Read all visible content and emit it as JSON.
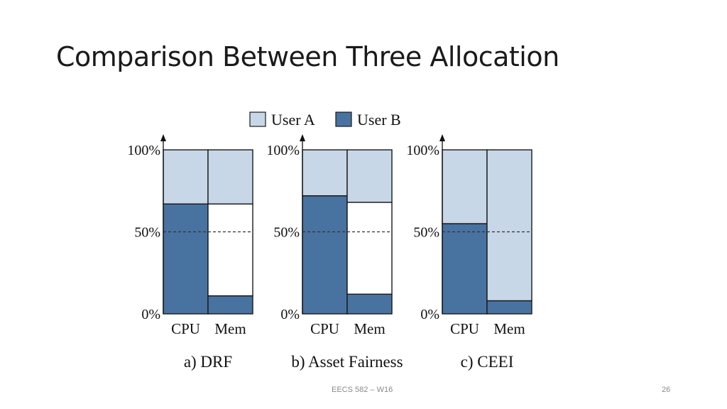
{
  "slide": {
    "title": "Comparison Between Three Allocation",
    "footer_course": "EECS 582 – W16",
    "page_number": "26"
  },
  "colors": {
    "user_a": "#c7d7e7",
    "user_b": "#4872a0",
    "unallocated": "#ffffff",
    "outline": "#1a1a1a"
  },
  "chart_data": {
    "type": "bar",
    "stacked": true,
    "legend": {
      "position": "top-center",
      "entries": [
        {
          "label": "User A",
          "color_key": "user_a"
        },
        {
          "label": "User B",
          "color_key": "user_b"
        }
      ]
    },
    "y_ticks": [
      "100%",
      "50%",
      "0%"
    ],
    "ylim": [
      0,
      100
    ],
    "reference_line": {
      "value": 50,
      "style": "dashed"
    },
    "categories": [
      "CPU",
      "Mem"
    ],
    "panels": [
      {
        "caption": "a) DRF",
        "bars": [
          {
            "category": "CPU",
            "user_b": 67,
            "user_a": 33,
            "unallocated": 0
          },
          {
            "category": "Mem",
            "user_b": 11,
            "user_a": 33,
            "unallocated": 56
          }
        ]
      },
      {
        "caption": "b) Asset Fairness",
        "bars": [
          {
            "category": "CPU",
            "user_b": 72,
            "user_a": 28,
            "unallocated": 0
          },
          {
            "category": "Mem",
            "user_b": 12,
            "user_a": 32,
            "unallocated": 56
          }
        ]
      },
      {
        "caption": "c) CEEI",
        "bars": [
          {
            "category": "CPU",
            "user_b": 55,
            "user_a": 45,
            "unallocated": 0
          },
          {
            "category": "Mem",
            "user_b": 8,
            "user_a": 92,
            "unallocated": 0
          }
        ]
      }
    ]
  }
}
